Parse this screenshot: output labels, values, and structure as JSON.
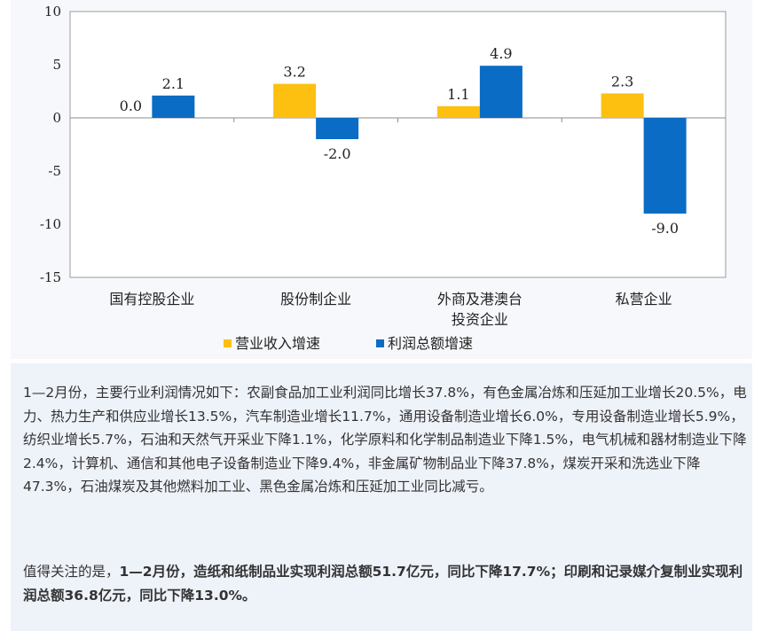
{
  "chart_data": {
    "type": "bar",
    "title": "",
    "ylabel": "",
    "ylim": [
      -15,
      10
    ],
    "yticks": [
      10,
      5,
      0,
      -5,
      -10,
      -15
    ],
    "categories": [
      "国有控股企业",
      "股份制企业",
      "外商及港澳台\n投资企业",
      "私营企业"
    ],
    "series": [
      {
        "name": "营业收入增速",
        "color": "#fdc010",
        "values": [
          0.0,
          3.2,
          1.1,
          2.3
        ]
      },
      {
        "name": "利润总额增速",
        "color": "#0a6cc4",
        "values": [
          2.1,
          -2.0,
          4.9,
          -9.0
        ]
      }
    ],
    "grid": false,
    "legend_placement": "bottom-left"
  },
  "text": {
    "para1": "1—2月份，主要行业利润情况如下：农副食品加工业利润同比增长37.8%，有色金属冶炼和压延加工业增长20.5%，电力、热力生产和供应业增长13.5%，汽车制造业增长11.7%，通用设备制造业增长6.0%，专用设备制造业增长5.9%，纺织业增长5.7%，石油和天然气开采业下降1.1%，化学原料和化学制品制造业下降1.5%，电气机械和器材制造业下降2.4%，计算机、通信和其他电子设备制造业下降9.4%，非金属矿物制品业下降37.8%，煤炭开采和洗选业下降47.3%，石油煤炭及其他燃料加工业、黑色金属冶炼和压延加工业同比减亏。",
    "para2_lead": "值得关注的是，",
    "para2_bold": "1—2月份，造纸和纸制品业实现利润总额51.7亿元，同比下降17.7%；印刷和记录媒介复制业实现利润总额36.8亿元，同比下降13.0%。"
  }
}
